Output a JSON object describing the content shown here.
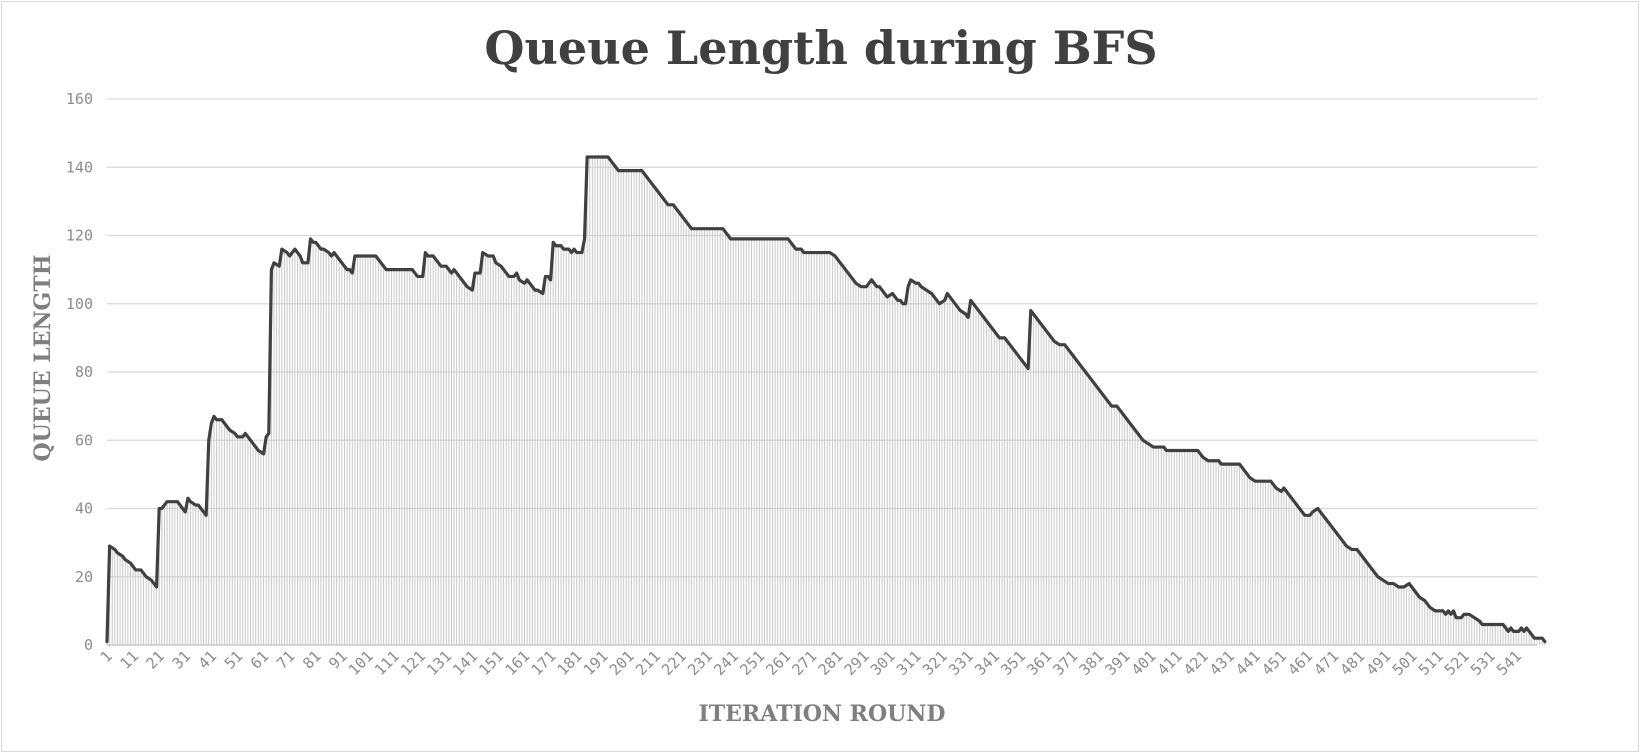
{
  "chart_data": {
    "type": "area",
    "title": "Queue Length during BFS",
    "xlabel": "ITERATION ROUND",
    "ylabel": "QUEUE LENGTH",
    "ylim": [
      0,
      160
    ],
    "ytick_step": 20,
    "xlim": [
      1,
      549
    ],
    "xtick_start": 1,
    "xtick_step": 10,
    "grid": true,
    "legend": "none",
    "colors": {
      "line": "#404040",
      "fill_lines": "#c8c8c8",
      "grid": "#d9d9d9",
      "title": "#404040",
      "axis_title": "#7f7f7f",
      "ticks": "#8c8c8c"
    },
    "series": [
      {
        "points": [
          [
            1,
            1
          ],
          [
            2,
            29
          ],
          [
            4,
            28
          ],
          [
            5,
            27
          ],
          [
            7,
            26
          ],
          [
            8,
            25
          ],
          [
            10,
            24
          ],
          [
            11,
            23
          ],
          [
            12,
            22
          ],
          [
            14,
            22
          ],
          [
            15,
            21
          ],
          [
            16,
            20
          ],
          [
            18,
            19
          ],
          [
            19,
            18
          ],
          [
            20,
            17
          ],
          [
            21,
            40
          ],
          [
            22,
            40
          ],
          [
            24,
            42
          ],
          [
            28,
            42
          ],
          [
            29,
            41
          ],
          [
            30,
            40
          ],
          [
            31,
            39
          ],
          [
            32,
            43
          ],
          [
            33,
            42
          ],
          [
            35,
            41
          ],
          [
            36,
            41
          ],
          [
            37,
            40
          ],
          [
            38,
            39
          ],
          [
            39,
            38
          ],
          [
            40,
            60
          ],
          [
            41,
            65
          ],
          [
            42,
            67
          ],
          [
            43,
            66
          ],
          [
            45,
            66
          ],
          [
            46,
            65
          ],
          [
            47,
            64
          ],
          [
            48,
            63
          ],
          [
            50,
            62
          ],
          [
            51,
            61
          ],
          [
            53,
            61
          ],
          [
            54,
            62
          ],
          [
            55,
            61
          ],
          [
            57,
            59
          ],
          [
            58,
            58
          ],
          [
            59,
            57
          ],
          [
            61,
            56
          ],
          [
            62,
            61
          ],
          [
            63,
            62
          ],
          [
            64,
            110
          ],
          [
            65,
            112
          ],
          [
            67,
            111
          ],
          [
            68,
            116
          ],
          [
            70,
            115
          ],
          [
            71,
            114
          ],
          [
            73,
            116
          ],
          [
            74,
            115
          ],
          [
            75,
            114
          ],
          [
            76,
            112
          ],
          [
            78,
            112
          ],
          [
            79,
            119
          ],
          [
            80,
            118
          ],
          [
            81,
            118
          ],
          [
            83,
            116
          ],
          [
            84,
            116
          ],
          [
            86,
            115
          ],
          [
            87,
            114
          ],
          [
            88,
            115
          ],
          [
            90,
            113
          ],
          [
            91,
            112
          ],
          [
            93,
            110
          ],
          [
            94,
            110
          ],
          [
            95,
            109
          ],
          [
            96,
            114
          ],
          [
            98,
            114
          ],
          [
            104,
            114
          ],
          [
            106,
            112
          ],
          [
            108,
            110
          ],
          [
            109,
            110
          ],
          [
            118,
            110
          ],
          [
            119,
            109
          ],
          [
            120,
            108
          ],
          [
            122,
            108
          ],
          [
            123,
            115
          ],
          [
            124,
            114
          ],
          [
            126,
            114
          ],
          [
            128,
            112
          ],
          [
            129,
            111
          ],
          [
            131,
            111
          ],
          [
            132,
            110
          ],
          [
            133,
            109
          ],
          [
            134,
            110
          ],
          [
            136,
            108
          ],
          [
            138,
            106
          ],
          [
            139,
            105
          ],
          [
            141,
            104
          ],
          [
            142,
            109
          ],
          [
            144,
            109
          ],
          [
            145,
            115
          ],
          [
            147,
            114
          ],
          [
            149,
            114
          ],
          [
            150,
            112
          ],
          [
            152,
            111
          ],
          [
            153,
            110
          ],
          [
            155,
            108
          ],
          [
            157,
            108
          ],
          [
            158,
            109
          ],
          [
            159,
            107
          ],
          [
            161,
            106
          ],
          [
            162,
            107
          ],
          [
            163,
            106
          ],
          [
            165,
            104
          ],
          [
            166,
            104
          ],
          [
            168,
            103
          ],
          [
            169,
            108
          ],
          [
            170,
            108
          ],
          [
            171,
            107
          ],
          [
            172,
            118
          ],
          [
            173,
            117
          ],
          [
            175,
            117
          ],
          [
            176,
            116
          ],
          [
            178,
            116
          ],
          [
            179,
            115
          ],
          [
            180,
            116
          ],
          [
            181,
            115
          ],
          [
            183,
            115
          ],
          [
            184,
            119
          ],
          [
            185,
            143
          ],
          [
            188,
            143
          ],
          [
            193,
            143
          ],
          [
            194,
            142
          ],
          [
            196,
            140
          ],
          [
            197,
            139
          ],
          [
            206,
            139
          ],
          [
            207,
            138
          ],
          [
            208,
            137
          ],
          [
            210,
            135
          ],
          [
            212,
            133
          ],
          [
            214,
            131
          ],
          [
            216,
            129
          ],
          [
            218,
            129
          ],
          [
            220,
            127
          ],
          [
            222,
            125
          ],
          [
            224,
            123
          ],
          [
            225,
            122
          ],
          [
            237,
            122
          ],
          [
            238,
            121
          ],
          [
            239,
            120
          ],
          [
            240,
            119
          ],
          [
            262,
            119
          ],
          [
            264,
            117
          ],
          [
            265,
            116
          ],
          [
            267,
            116
          ],
          [
            268,
            115
          ],
          [
            278,
            115
          ],
          [
            280,
            114
          ],
          [
            282,
            112
          ],
          [
            284,
            110
          ],
          [
            286,
            108
          ],
          [
            288,
            106
          ],
          [
            290,
            105
          ],
          [
            292,
            105
          ],
          [
            294,
            107
          ],
          [
            296,
            105
          ],
          [
            297,
            105
          ],
          [
            299,
            103
          ],
          [
            300,
            102
          ],
          [
            302,
            103
          ],
          [
            304,
            101
          ],
          [
            305,
            101
          ],
          [
            306,
            100
          ],
          [
            307,
            100
          ],
          [
            308,
            105
          ],
          [
            309,
            107
          ],
          [
            311,
            106
          ],
          [
            312,
            106
          ],
          [
            313,
            105
          ],
          [
            315,
            104
          ],
          [
            317,
            103
          ],
          [
            318,
            102
          ],
          [
            319,
            101
          ],
          [
            320,
            100
          ],
          [
            322,
            101
          ],
          [
            323,
            103
          ],
          [
            325,
            101
          ],
          [
            327,
            99
          ],
          [
            328,
            98
          ],
          [
            330,
            97
          ],
          [
            331,
            96
          ],
          [
            332,
            101
          ],
          [
            333,
            100
          ],
          [
            335,
            98
          ],
          [
            337,
            96
          ],
          [
            339,
            94
          ],
          [
            341,
            92
          ],
          [
            343,
            90
          ],
          [
            345,
            90
          ],
          [
            347,
            88
          ],
          [
            348,
            87
          ],
          [
            350,
            85
          ],
          [
            352,
            83
          ],
          [
            354,
            81
          ],
          [
            355,
            98
          ],
          [
            357,
            96
          ],
          [
            359,
            94
          ],
          [
            361,
            92
          ],
          [
            363,
            90
          ],
          [
            364,
            89
          ],
          [
            366,
            88
          ],
          [
            368,
            88
          ],
          [
            370,
            86
          ],
          [
            372,
            84
          ],
          [
            374,
            82
          ],
          [
            376,
            80
          ],
          [
            378,
            78
          ],
          [
            380,
            76
          ],
          [
            382,
            74
          ],
          [
            384,
            72
          ],
          [
            386,
            70
          ],
          [
            388,
            70
          ],
          [
            390,
            68
          ],
          [
            392,
            66
          ],
          [
            394,
            64
          ],
          [
            396,
            62
          ],
          [
            398,
            60
          ],
          [
            400,
            59
          ],
          [
            402,
            58
          ],
          [
            406,
            58
          ],
          [
            407,
            57
          ],
          [
            419,
            57
          ],
          [
            421,
            55
          ],
          [
            423,
            54
          ],
          [
            427,
            54
          ],
          [
            428,
            53
          ],
          [
            435,
            53
          ],
          [
            437,
            51
          ],
          [
            439,
            49
          ],
          [
            441,
            48
          ],
          [
            447,
            48
          ],
          [
            449,
            46
          ],
          [
            451,
            45
          ],
          [
            452,
            46
          ],
          [
            454,
            44
          ],
          [
            456,
            42
          ],
          [
            458,
            40
          ],
          [
            460,
            38
          ],
          [
            462,
            38
          ],
          [
            463,
            39
          ],
          [
            465,
            40
          ],
          [
            466,
            39
          ],
          [
            468,
            37
          ],
          [
            470,
            35
          ],
          [
            472,
            33
          ],
          [
            474,
            31
          ],
          [
            476,
            29
          ],
          [
            478,
            28
          ],
          [
            480,
            28
          ],
          [
            482,
            26
          ],
          [
            484,
            24
          ],
          [
            486,
            22
          ],
          [
            488,
            20
          ],
          [
            490,
            19
          ],
          [
            492,
            18
          ],
          [
            494,
            18
          ],
          [
            496,
            17
          ],
          [
            498,
            17
          ],
          [
            500,
            18
          ],
          [
            502,
            16
          ],
          [
            504,
            14
          ],
          [
            506,
            13
          ],
          [
            508,
            11
          ],
          [
            510,
            10
          ],
          [
            513,
            10
          ],
          [
            514,
            9
          ],
          [
            515,
            10
          ],
          [
            516,
            9
          ],
          [
            517,
            10
          ],
          [
            518,
            8
          ],
          [
            520,
            8
          ],
          [
            521,
            9
          ],
          [
            523,
            9
          ],
          [
            525,
            8
          ],
          [
            527,
            7
          ],
          [
            528,
            6
          ],
          [
            536,
            6
          ],
          [
            538,
            4
          ],
          [
            539,
            5
          ],
          [
            540,
            4
          ],
          [
            542,
            4
          ],
          [
            543,
            5
          ],
          [
            544,
            4
          ],
          [
            545,
            5
          ],
          [
            546,
            4
          ],
          [
            547,
            3
          ],
          [
            548,
            2
          ],
          [
            551,
            2
          ],
          [
            552,
            1
          ]
        ]
      }
    ]
  }
}
